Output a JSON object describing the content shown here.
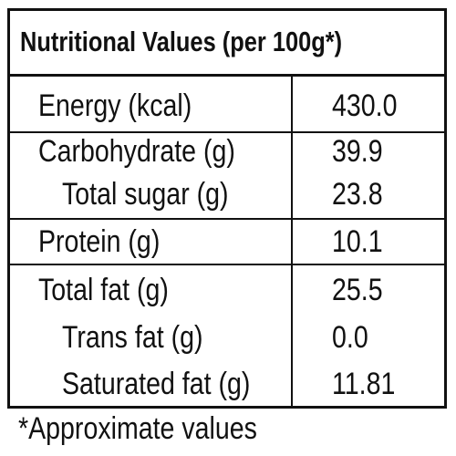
{
  "table": {
    "title": "Nutritional Values (per 100g*)",
    "rows": [
      [
        "Energy (kcal)",
        "430.0"
      ],
      [
        "Carbohydrate (g)",
        "39.9"
      ],
      [
        "Total sugar (g)",
        "23.8"
      ],
      [
        "Protein (g)",
        "10.1"
      ],
      [
        "Total fat (g)",
        "25.5"
      ],
      [
        "Trans fat (g)",
        "0.0"
      ],
      [
        "Saturated fat (g)",
        "11.81"
      ]
    ],
    "footnote": "*Approximate values"
  }
}
